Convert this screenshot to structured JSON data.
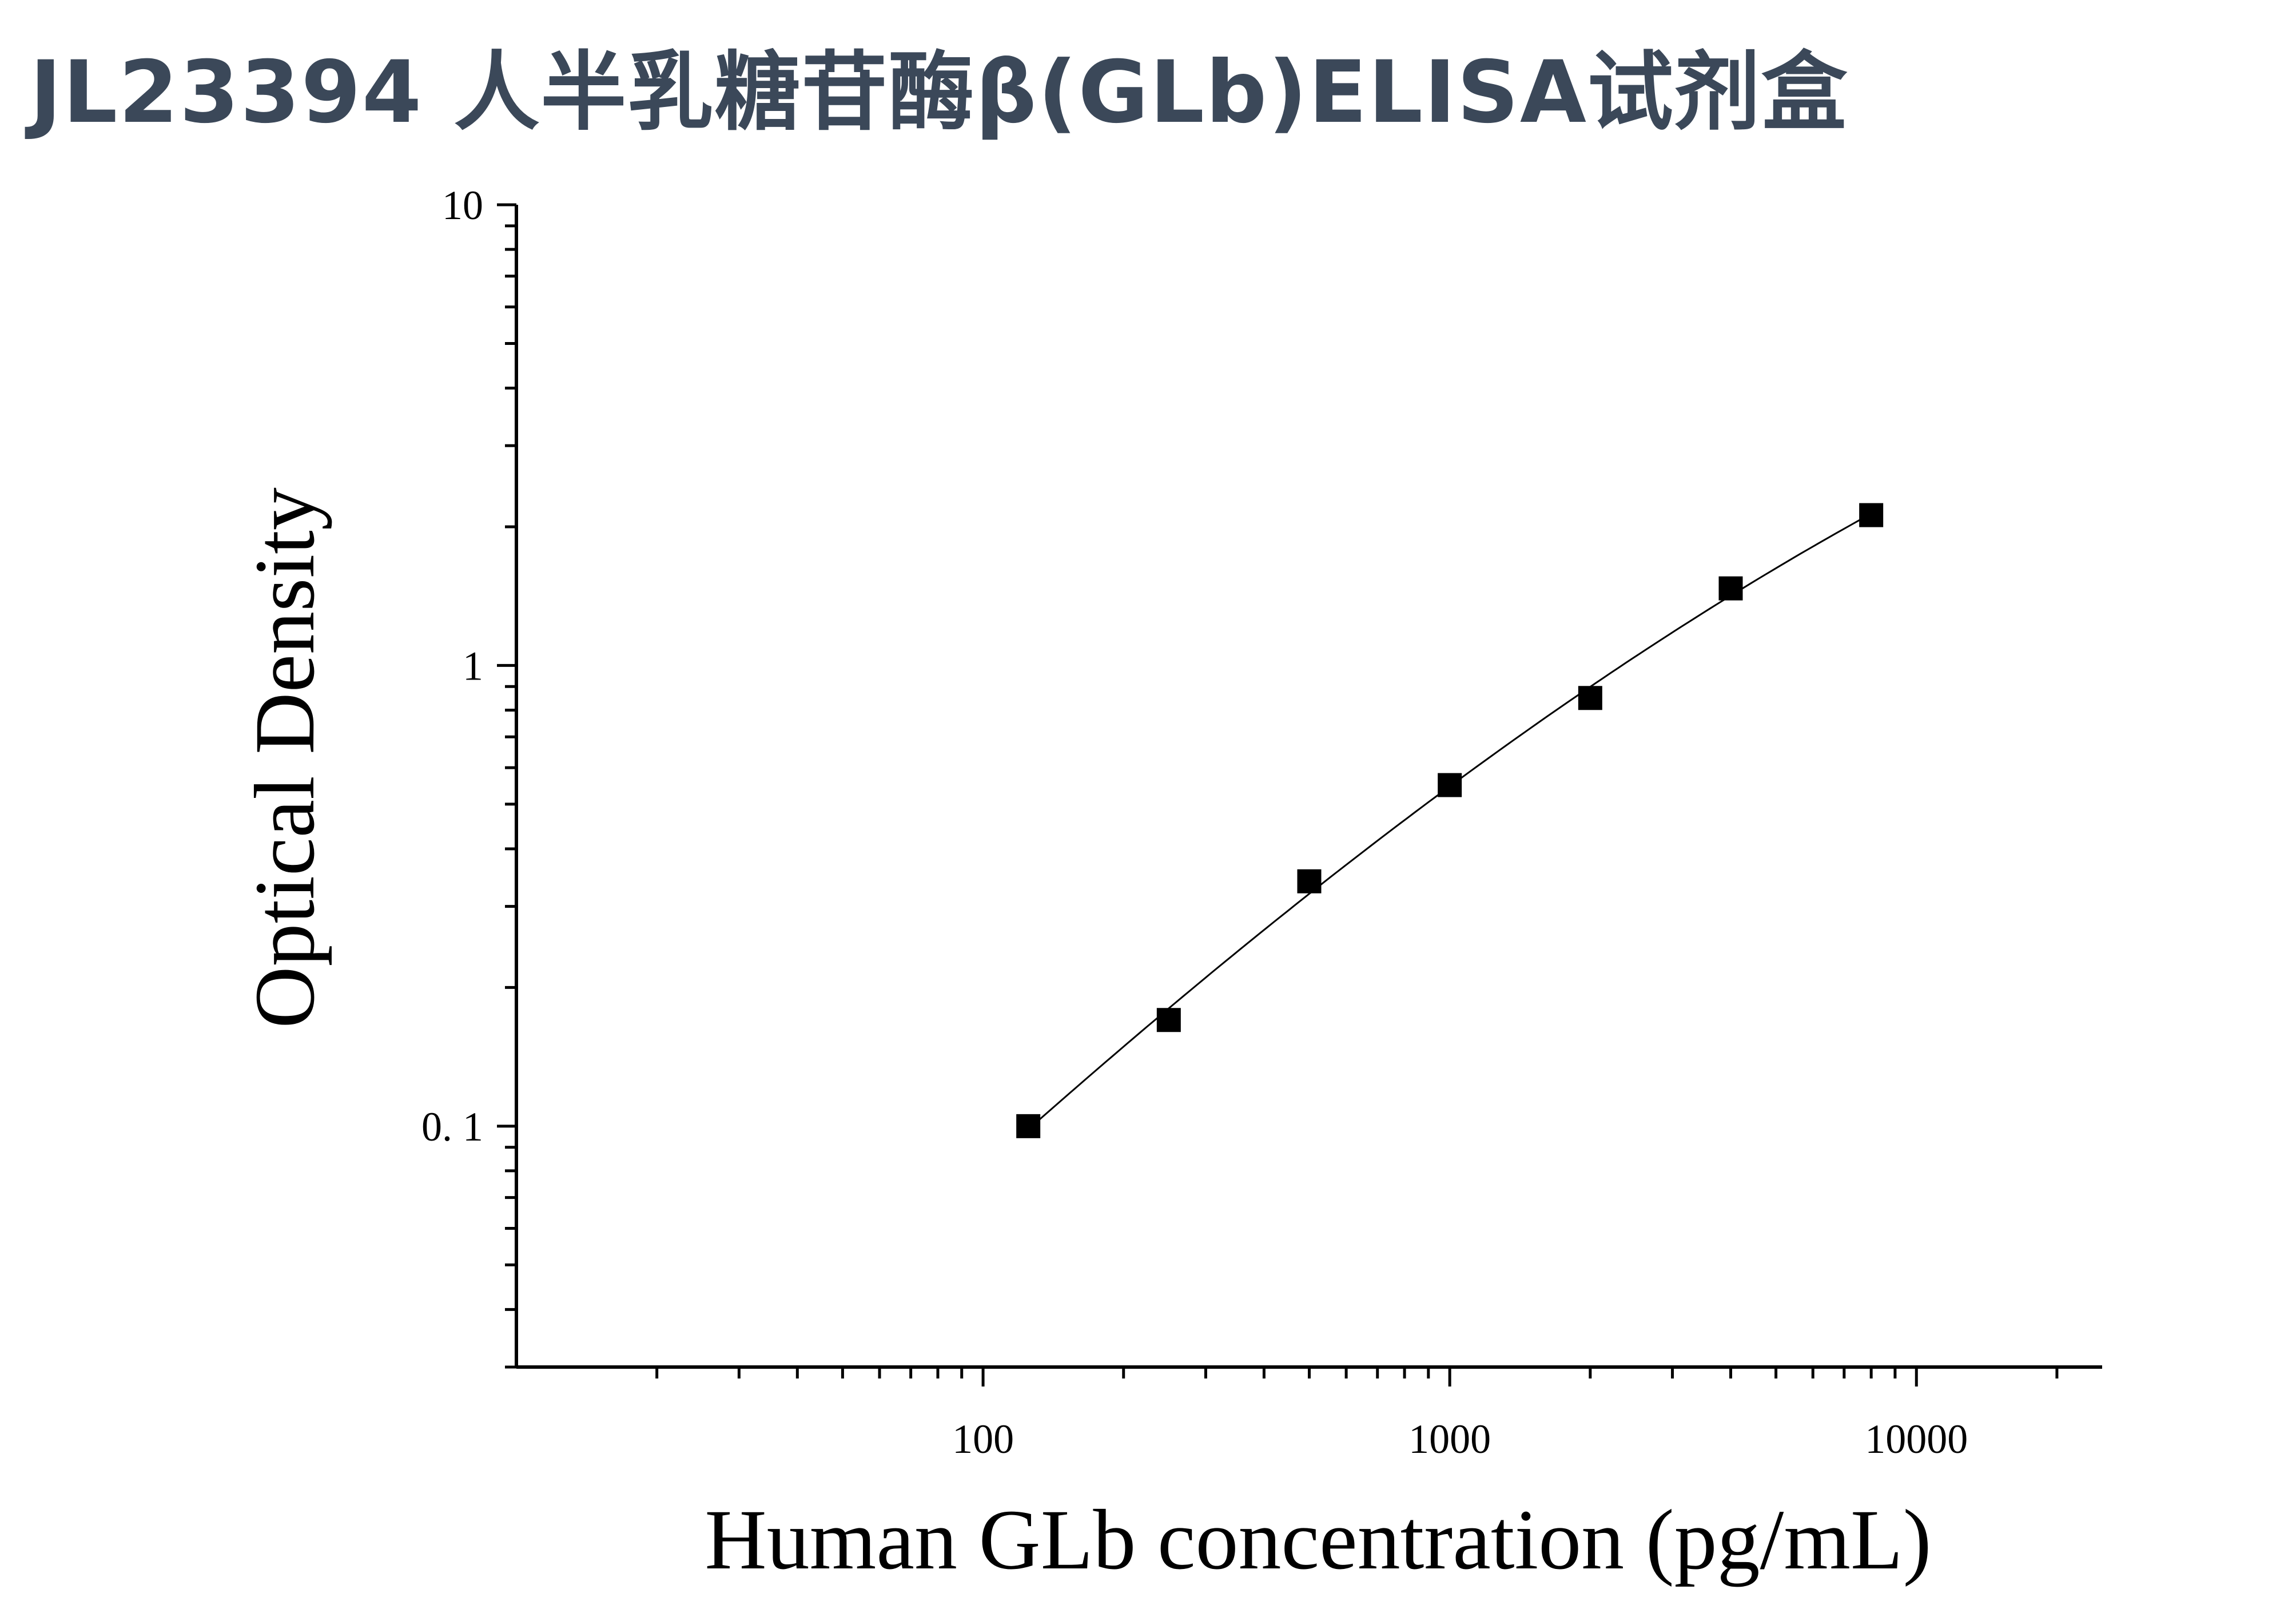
{
  "title": "JL23394 人半乳糖苷酶β(GLb)ELISA试剂盒",
  "chart_data": {
    "type": "scatter",
    "xscale": "log",
    "yscale": "log",
    "xlabel": "Human GLb concentration (pg/mL)",
    "ylabel": "Optical Density",
    "xlim": [
      10,
      25000
    ],
    "ylim": [
      0.03,
      10
    ],
    "x_ticks": [
      {
        "value": 100,
        "label": "100"
      },
      {
        "value": 1000,
        "label": "1000"
      },
      {
        "value": 10000,
        "label": "10000"
      }
    ],
    "y_ticks": [
      {
        "value": 10,
        "label": "10"
      },
      {
        "value": 1,
        "label": "1"
      },
      {
        "value": 0.1,
        "label": "0. 1"
      }
    ],
    "grid": false,
    "series": [
      {
        "x": [
          125,
          250,
          500,
          1000,
          2000,
          4000,
          8000
        ],
        "y": [
          0.1,
          0.17,
          0.34,
          0.55,
          0.85,
          1.47,
          2.12
        ],
        "marker": "square",
        "fit_line": true
      }
    ],
    "colors": {
      "marker": "#000000",
      "line": "#000000",
      "axis": "#000000",
      "title": "#3b4859"
    }
  }
}
